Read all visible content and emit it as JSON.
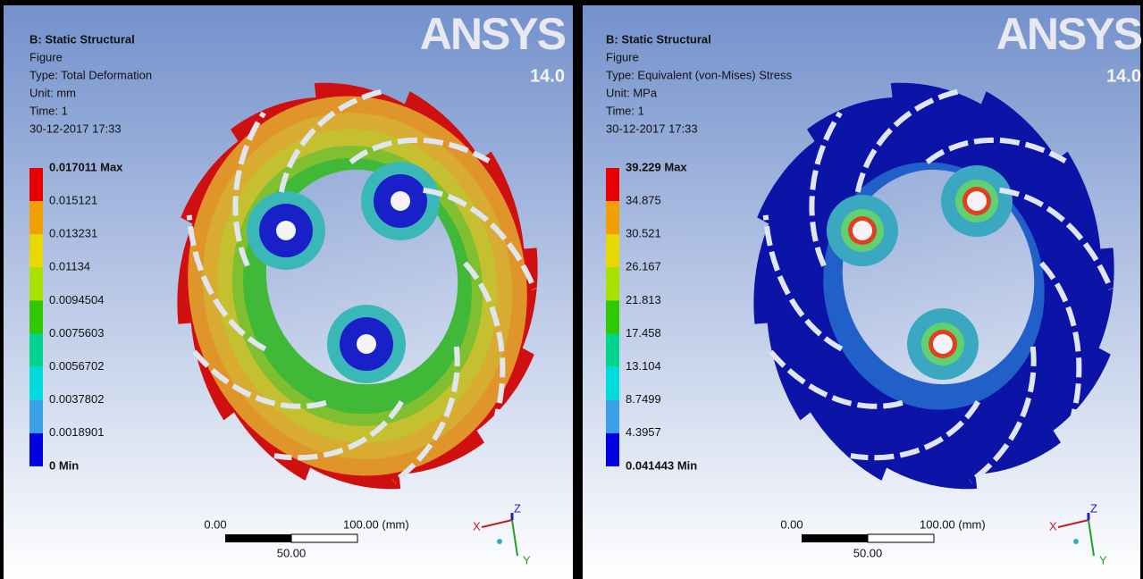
{
  "panels": [
    {
      "header": {
        "title": "B: Static Structural",
        "lines": [
          "Figure",
          "Type: Total Deformation",
          "Unit: mm",
          "Time: 1",
          "30-12-2017 17:33"
        ]
      },
      "logo": {
        "brand": "ANSYS",
        "version": "14.0"
      },
      "legend": [
        "0.017011 Max",
        "0.015121",
        "0.013231",
        "0.01134",
        "0.0094504",
        "0.0075603",
        "0.0056702",
        "0.0037802",
        "0.0018901",
        "0 Min"
      ],
      "scale": {
        "start": "0.00",
        "end": "100.00 (mm)",
        "mid": "50.00"
      },
      "triad": {
        "x": "X",
        "y": "Y",
        "z": "Z"
      }
    },
    {
      "header": {
        "title": "B: Static Structural",
        "lines": [
          "Figure",
          "Type: Equivalent (von-Mises) Stress",
          "Unit: MPa",
          "Time: 1",
          "30-12-2017 17:33"
        ]
      },
      "logo": {
        "brand": "ANSYS",
        "version": "14.0"
      },
      "legend": [
        "39.229 Max",
        "34.875",
        "30.521",
        "26.167",
        "21.813",
        "17.458",
        "13.104",
        "8.7499",
        "4.3957",
        "0.041443 Min"
      ],
      "scale": {
        "start": "0.00",
        "end": "100.00 (mm)",
        "mid": "50.00"
      },
      "triad": {
        "x": "X",
        "y": "Y",
        "z": "Z"
      }
    }
  ]
}
